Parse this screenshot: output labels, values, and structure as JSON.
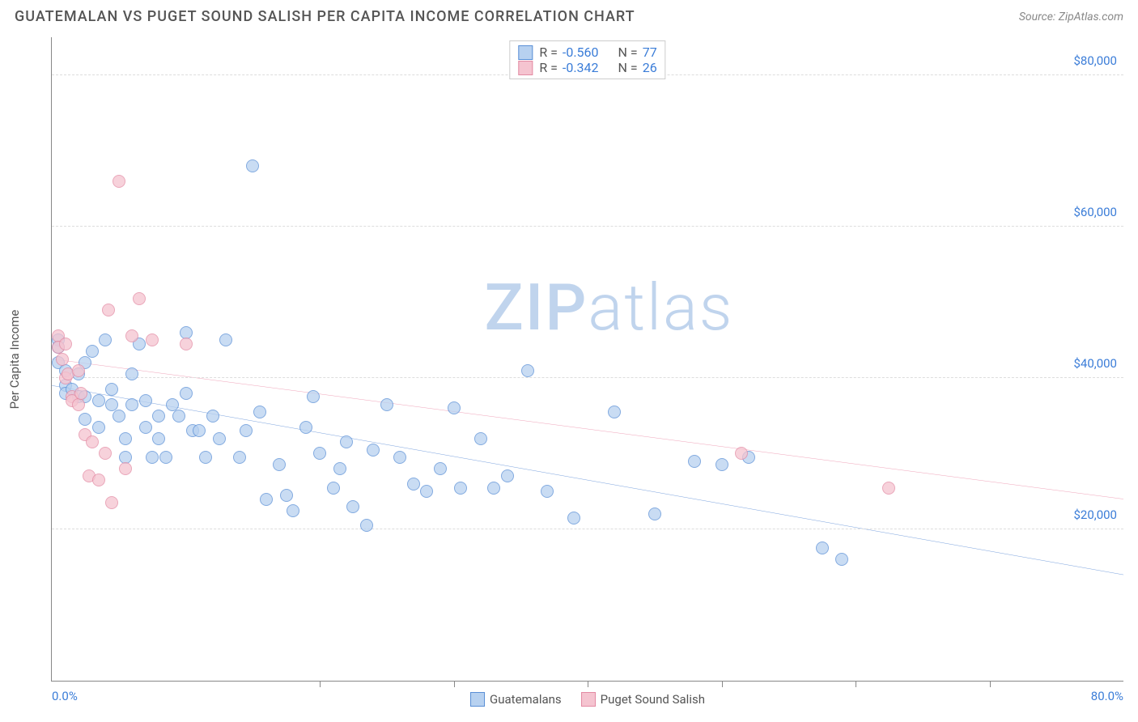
{
  "header": {
    "title": "GUATEMALAN VS PUGET SOUND SALISH PER CAPITA INCOME CORRELATION CHART",
    "source": "Source: ZipAtlas.com"
  },
  "watermark": {
    "part1": "ZIP",
    "part2": "atlas"
  },
  "chart": {
    "type": "scatter",
    "y_axis_label": "Per Capita Income",
    "xlim": [
      0,
      80
    ],
    "ylim": [
      0,
      85000
    ],
    "xtick_labels": [
      {
        "pos": 0,
        "label": "0.0%"
      },
      {
        "pos": 80,
        "label": "80.0%"
      }
    ],
    "xticks_minor": [
      20,
      30,
      40,
      50,
      60,
      70
    ],
    "ytick_labels": [
      {
        "pos": 20000,
        "label": "$20,000"
      },
      {
        "pos": 40000,
        "label": "$40,000"
      },
      {
        "pos": 60000,
        "label": "$60,000"
      },
      {
        "pos": 80000,
        "label": "$80,000"
      }
    ],
    "grid_color": "#dddddd",
    "background_color": "#ffffff",
    "legend_top": [
      {
        "swatch_fill": "#b7d1f0",
        "swatch_stroke": "#5a8fd6",
        "r": "-0.560",
        "n": "77"
      },
      {
        "swatch_fill": "#f5c4d0",
        "swatch_stroke": "#e38aa3",
        "r": "-0.342",
        "n": "26"
      }
    ],
    "legend_bottom": [
      {
        "swatch_fill": "#b7d1f0",
        "swatch_stroke": "#5a8fd6",
        "label": "Guatemalans"
      },
      {
        "swatch_fill": "#f5c4d0",
        "swatch_stroke": "#e38aa3",
        "label": "Puget Sound Salish"
      }
    ],
    "series": [
      {
        "name": "Guatemalans",
        "fill": "#b7d1f0",
        "stroke": "#5a8fd6",
        "opacity": 0.75,
        "marker_radius": 8,
        "trend": {
          "x1": 0,
          "y1": 39000,
          "x2": 80,
          "y2": 14000,
          "color": "#2968c8",
          "width": 2.5
        },
        "points": [
          [
            0.5,
            45000
          ],
          [
            0.5,
            44000
          ],
          [
            0.5,
            42000
          ],
          [
            1.0,
            41000
          ],
          [
            1.0,
            39000
          ],
          [
            1.0,
            38000
          ],
          [
            1.5,
            38500
          ],
          [
            2.0,
            40500
          ],
          [
            2.0,
            37500
          ],
          [
            2.5,
            37500
          ],
          [
            2.5,
            42000
          ],
          [
            2.5,
            34500
          ],
          [
            3.0,
            43500
          ],
          [
            3.5,
            37000
          ],
          [
            3.5,
            33500
          ],
          [
            4.0,
            45000
          ],
          [
            4.5,
            38500
          ],
          [
            4.5,
            36500
          ],
          [
            5.0,
            35000
          ],
          [
            5.5,
            29500
          ],
          [
            5.5,
            32000
          ],
          [
            6.0,
            40500
          ],
          [
            6.0,
            36500
          ],
          [
            6.5,
            44500
          ],
          [
            7.0,
            33500
          ],
          [
            7.0,
            37000
          ],
          [
            7.5,
            29500
          ],
          [
            8.0,
            35000
          ],
          [
            8.0,
            32000
          ],
          [
            8.5,
            29500
          ],
          [
            9.0,
            36500
          ],
          [
            9.5,
            35000
          ],
          [
            10.0,
            38000
          ],
          [
            10.0,
            46000
          ],
          [
            10.5,
            33000
          ],
          [
            11.0,
            33000
          ],
          [
            11.5,
            29500
          ],
          [
            12.0,
            35000
          ],
          [
            12.5,
            32000
          ],
          [
            13.0,
            45000
          ],
          [
            14.0,
            29500
          ],
          [
            14.5,
            33000
          ],
          [
            15.0,
            68000
          ],
          [
            15.5,
            35500
          ],
          [
            16.0,
            24000
          ],
          [
            17.0,
            28500
          ],
          [
            17.5,
            24500
          ],
          [
            18.0,
            22500
          ],
          [
            19.0,
            33500
          ],
          [
            19.5,
            37500
          ],
          [
            20.0,
            30000
          ],
          [
            21.0,
            25500
          ],
          [
            21.5,
            28000
          ],
          [
            22.0,
            31500
          ],
          [
            22.5,
            23000
          ],
          [
            23.5,
            20500
          ],
          [
            24.0,
            30500
          ],
          [
            25.0,
            36500
          ],
          [
            26.0,
            29500
          ],
          [
            27.0,
            26000
          ],
          [
            28.0,
            25000
          ],
          [
            29.0,
            28000
          ],
          [
            30.0,
            36000
          ],
          [
            30.5,
            25500
          ],
          [
            32.0,
            32000
          ],
          [
            33.0,
            25500
          ],
          [
            34.0,
            27000
          ],
          [
            35.5,
            41000
          ],
          [
            37.0,
            25000
          ],
          [
            39.0,
            21500
          ],
          [
            42.0,
            35500
          ],
          [
            45.0,
            22000
          ],
          [
            48.0,
            29000
          ],
          [
            50.0,
            28500
          ],
          [
            52.0,
            29500
          ],
          [
            57.5,
            17500
          ],
          [
            59.0,
            16000
          ]
        ]
      },
      {
        "name": "Puget Sound Salish",
        "fill": "#f5c4d0",
        "stroke": "#e38aa3",
        "opacity": 0.75,
        "marker_radius": 8,
        "trend": {
          "x1": 0,
          "y1": 42500,
          "x2": 80,
          "y2": 24000,
          "color": "#e56b8f",
          "width": 2.5
        },
        "points": [
          [
            0.5,
            45500
          ],
          [
            0.5,
            44000
          ],
          [
            0.8,
            42500
          ],
          [
            1.0,
            44500
          ],
          [
            1.0,
            40000
          ],
          [
            1.2,
            40500
          ],
          [
            1.5,
            37500
          ],
          [
            1.5,
            37000
          ],
          [
            2.0,
            36500
          ],
          [
            2.0,
            41000
          ],
          [
            2.2,
            38000
          ],
          [
            2.5,
            32500
          ],
          [
            2.8,
            27000
          ],
          [
            3.0,
            31500
          ],
          [
            3.5,
            26500
          ],
          [
            4.0,
            30000
          ],
          [
            4.2,
            49000
          ],
          [
            4.5,
            23500
          ],
          [
            5.0,
            66000
          ],
          [
            5.5,
            28000
          ],
          [
            6.0,
            45500
          ],
          [
            6.5,
            50500
          ],
          [
            7.5,
            45000
          ],
          [
            10.0,
            44500
          ],
          [
            51.5,
            30000
          ],
          [
            62.5,
            25500
          ]
        ]
      }
    ]
  }
}
